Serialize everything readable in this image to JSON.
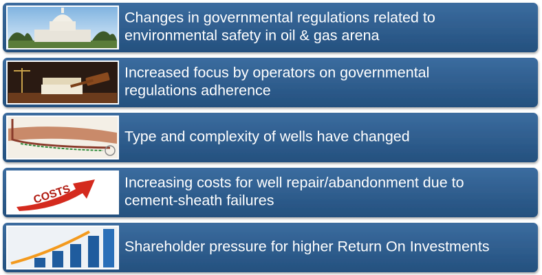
{
  "items": [
    {
      "lines": [
        "Changes in governmental regulations related to",
        "environmental safety in oil & gas arena"
      ]
    },
    {
      "lines": [
        "Increased focus by operators on governmental",
        "regulations adherence"
      ]
    },
    {
      "lines": [
        "Type and complexity of wells have changed"
      ]
    },
    {
      "lines": [
        "Increasing costs for well repair/abandonment due to",
        "cement-sheath failures"
      ]
    },
    {
      "lines": [
        "Shareholder pressure for higher Return On Investments"
      ]
    }
  ]
}
